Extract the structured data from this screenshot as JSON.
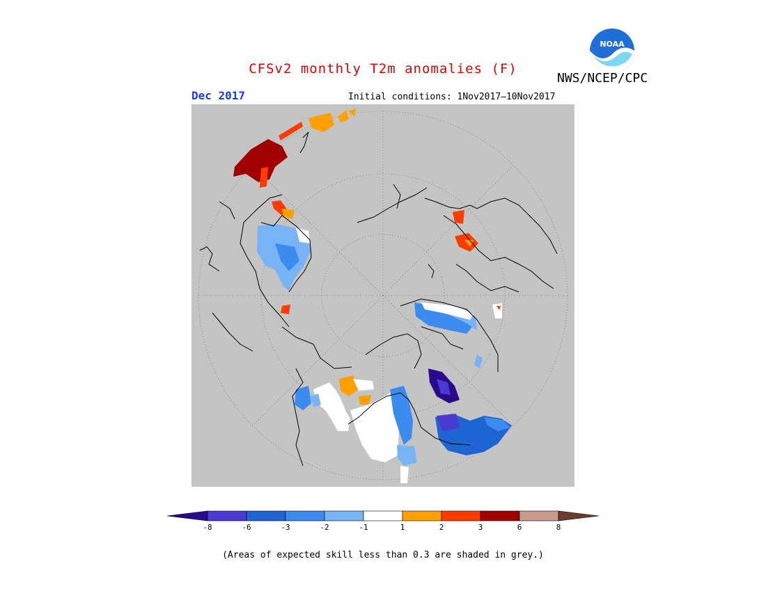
{
  "title": "CFSv2 monthly T2m anomalies (F)",
  "agency": "NWS/NCEP/CPC",
  "logo_text": "NOAA",
  "valid_month": "Dec 2017",
  "initial_conditions": "Initial conditions: 1Nov2017–10Nov2017",
  "colorbar": {
    "colors": [
      "#2a0a8c",
      "#4a3ad0",
      "#1e64d2",
      "#3c8cf0",
      "#78b4f5",
      "#ffffff",
      "#ffa000",
      "#ff3c00",
      "#a00000",
      "#c89a8c",
      "#6e3c2c"
    ],
    "labels": [
      "-8",
      "-6",
      "-3",
      "-2",
      "-1",
      "1",
      "2",
      "3",
      "6",
      "8"
    ]
  },
  "colors": {
    "map_background": "#c4c4c4",
    "title": "#e00000",
    "month": "#1a3ed8"
  },
  "footnote": "(Areas of expected skill less than 0.3 are shaded in grey.)"
}
